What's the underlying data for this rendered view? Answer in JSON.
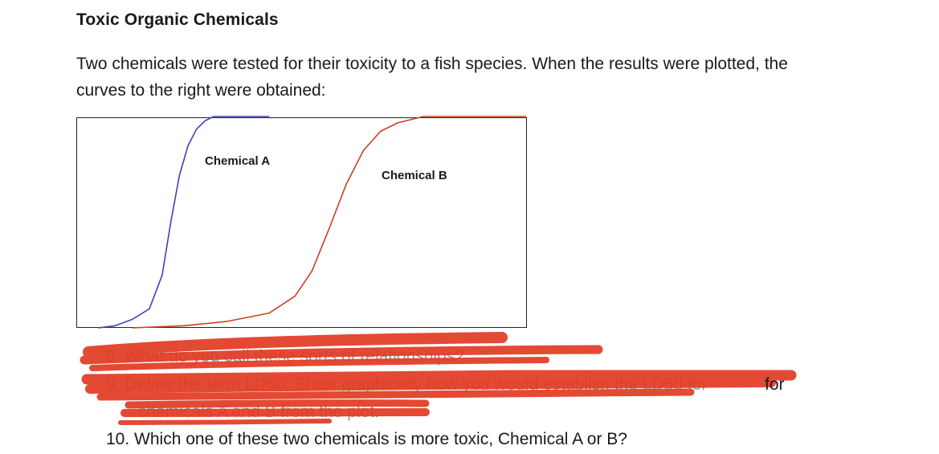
{
  "document": {
    "title": "Toxic Organic Chemicals",
    "intro": "Two chemicals were tested for their toxicity to a fish species. When the results were plotted, the curves to the right were obtained:"
  },
  "questions": [
    {
      "number": "8.",
      "text": "What do you call these sorts of relationships?"
    },
    {
      "number": "9.",
      "text": "Define the term LD50. Show graphically how you would establish the LD50 for"
    },
    {
      "number": "",
      "text": "chemicals A and B from the plot."
    },
    {
      "number": "10.",
      "text": "Which one of these two chemicals is more toxic, Chemical A or B?"
    }
  ],
  "visible_tail": "for",
  "chart_data": {
    "type": "line",
    "xlim": [
      0,
      100
    ],
    "ylim": [
      0,
      100
    ],
    "series": [
      {
        "name": "Chemical A",
        "color": "#3a44b8",
        "x": [
          0,
          4,
          8,
          12,
          15,
          17,
          19,
          21,
          23,
          25,
          27,
          30,
          35,
          40
        ],
        "y": [
          0,
          1,
          4,
          9,
          25,
          50,
          72,
          86,
          94,
          98,
          100,
          100,
          100,
          100
        ]
      },
      {
        "name": "Chemical B",
        "color": "#c9411f",
        "x": [
          8,
          20,
          30,
          40,
          46,
          50,
          54,
          58,
          62,
          66,
          70,
          76,
          84,
          92,
          100
        ],
        "y": [
          0,
          1,
          3,
          7,
          15,
          27,
          47,
          68,
          84,
          93,
          97,
          100,
          100,
          100,
          100
        ]
      }
    ],
    "grid": false
  }
}
